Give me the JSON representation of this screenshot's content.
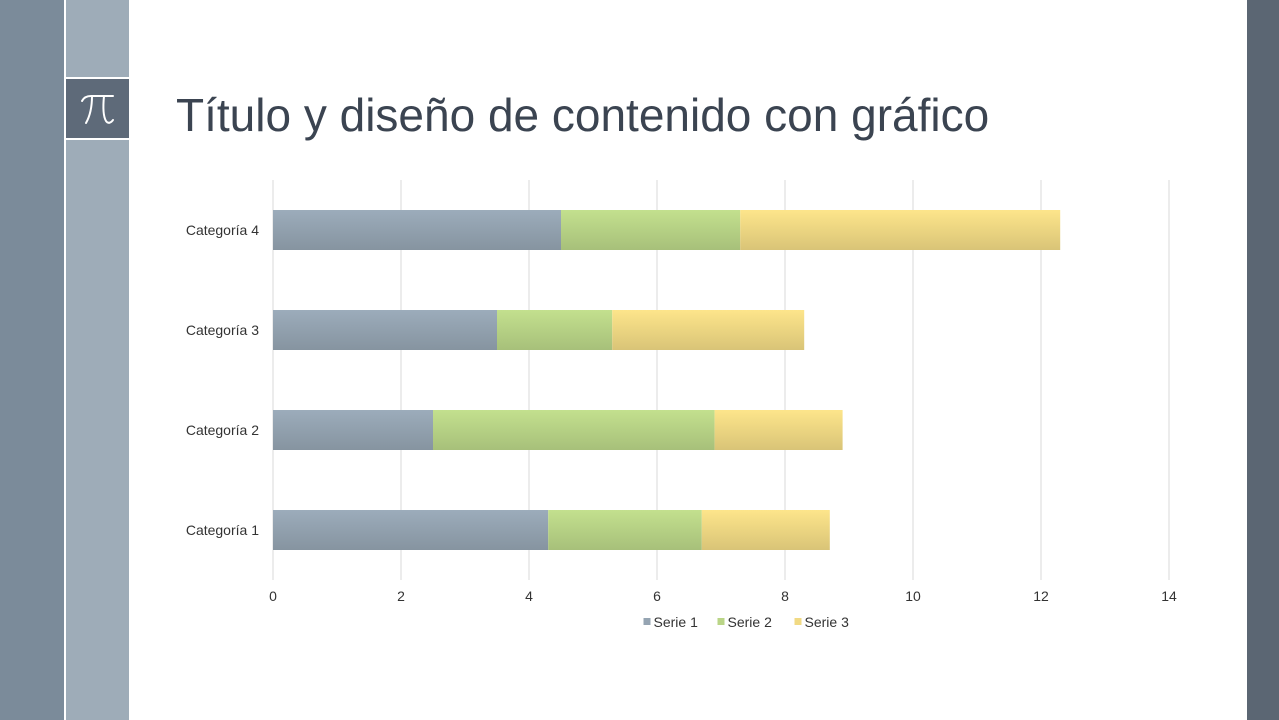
{
  "slide": {
    "title": "Título y diseño de contenido con gráfico",
    "icon": "pi-icon"
  },
  "chart_data": {
    "type": "bar",
    "orientation": "horizontal",
    "stacked": true,
    "categories": [
      "Categoría 1",
      "Categoría 2",
      "Categoría 3",
      "Categoría 4"
    ],
    "series": [
      {
        "name": "Serie 1",
        "values": [
          4.3,
          2.5,
          3.5,
          4.5
        ],
        "color": "#95a4b2"
      },
      {
        "name": "Serie 2",
        "values": [
          2.4,
          4.4,
          1.8,
          2.8
        ],
        "color": "#bad587"
      },
      {
        "name": "Serie 3",
        "values": [
          2.0,
          2.0,
          3.0,
          5.0
        ],
        "color": "#f1da84"
      }
    ],
    "x_ticks": [
      "0",
      "2",
      "4",
      "6",
      "8",
      "10",
      "12",
      "14"
    ],
    "xlim": [
      0,
      14
    ],
    "grid": true,
    "legend_position": "bottom"
  }
}
